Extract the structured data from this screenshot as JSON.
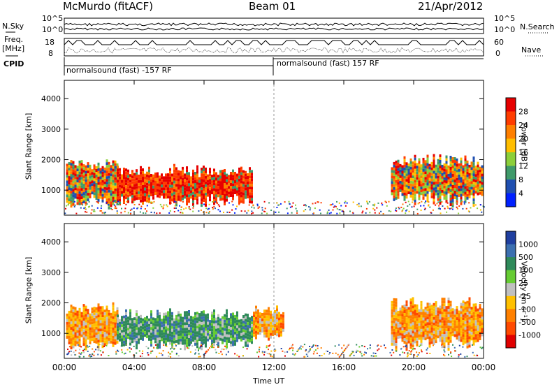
{
  "header": {
    "station": "McMurdo (fitACF)",
    "beam": "Beam 01",
    "date": "21/Apr/2012"
  },
  "meta_panels": {
    "nsky_label": "N.Sky",
    "nsky_ticks": [
      "10^5",
      "10^0"
    ],
    "nsearch_label": "N.Search",
    "nsearch_ticks": [
      "10^5",
      "10^0"
    ],
    "freq_label": "Freq.",
    "freq_unit": "[MHz]",
    "freq_ticks": [
      "18",
      "8"
    ],
    "nave_label": "Nave",
    "nave_ticks": [
      "60",
      "0"
    ],
    "cpid_label": "CPID",
    "cpid_segments": [
      {
        "text": "normalsound (fast) -157 RF",
        "start_hour": 0,
        "end_hour": 12
      },
      {
        "text": "normalsound (fast) 157 RF",
        "start_hour": 12,
        "end_hour": 24
      }
    ]
  },
  "chart_data": [
    {
      "type": "heatmap",
      "title": "",
      "xlabel": "Time UT",
      "ylabel": "Slant Range [km]",
      "xlim": [
        0,
        24
      ],
      "ylim": [
        180,
        4600
      ],
      "x_ticks": [
        "00:00",
        "04:00",
        "08:00",
        "12:00",
        "16:00",
        "20:00",
        "00:00"
      ],
      "y_ticks": [
        1000,
        2000,
        3000,
        4000
      ],
      "colorbar": {
        "label": "Power [dB]",
        "ticks": [
          "28",
          "24",
          "20",
          "16",
          "12",
          "8",
          "4"
        ],
        "colors": [
          "#e60000",
          "#ff3c00",
          "#ff7f00",
          "#ffbe00",
          "#8ccf3a",
          "#3f9a6a",
          "#1f4fb0",
          "#0020ff"
        ]
      },
      "echo_regions": [
        {
          "t_start": 0.1,
          "t_end": 3.0,
          "r_low": 500,
          "r_high": 2000,
          "level": "mid-high"
        },
        {
          "t_start": 3.0,
          "t_end": 10.8,
          "r_low": 550,
          "r_high": 1800,
          "level": "high"
        },
        {
          "t_start": 18.7,
          "t_end": 23.9,
          "r_low": 500,
          "r_high": 2200,
          "level": "mid-high"
        }
      ]
    },
    {
      "type": "heatmap",
      "title": "",
      "xlabel": "Time UT",
      "ylabel": "Slant Range [km]",
      "xlim": [
        0,
        24
      ],
      "ylim": [
        180,
        4600
      ],
      "x_ticks": [
        "00:00",
        "04:00",
        "08:00",
        "12:00",
        "16:00",
        "20:00",
        "00:00"
      ],
      "y_ticks": [
        1000,
        2000,
        3000,
        4000
      ],
      "colorbar": {
        "label": "Velocity [m s⁻¹]",
        "ticks": [
          "1000",
          "500",
          "100",
          "25",
          "-25",
          "-100",
          "-500",
          "-1000"
        ],
        "colors": [
          "#1f3fa0",
          "#3c70b0",
          "#2f8a5a",
          "#66cc33",
          "#c0c0c0",
          "#ffc000",
          "#ff8000",
          "#ff4a00",
          "#e00000"
        ]
      },
      "echo_regions": [
        {
          "t_start": 0.1,
          "t_end": 3.0,
          "r_low": 500,
          "r_high": 2000,
          "level": "negative"
        },
        {
          "t_start": 3.0,
          "t_end": 10.8,
          "r_low": 550,
          "r_high": 1800,
          "level": "positive"
        },
        {
          "t_start": 10.8,
          "t_end": 12.5,
          "r_low": 800,
          "r_high": 1900,
          "level": "negative"
        },
        {
          "t_start": 18.7,
          "t_end": 23.9,
          "r_low": 500,
          "r_high": 2200,
          "level": "negative"
        }
      ]
    }
  ]
}
